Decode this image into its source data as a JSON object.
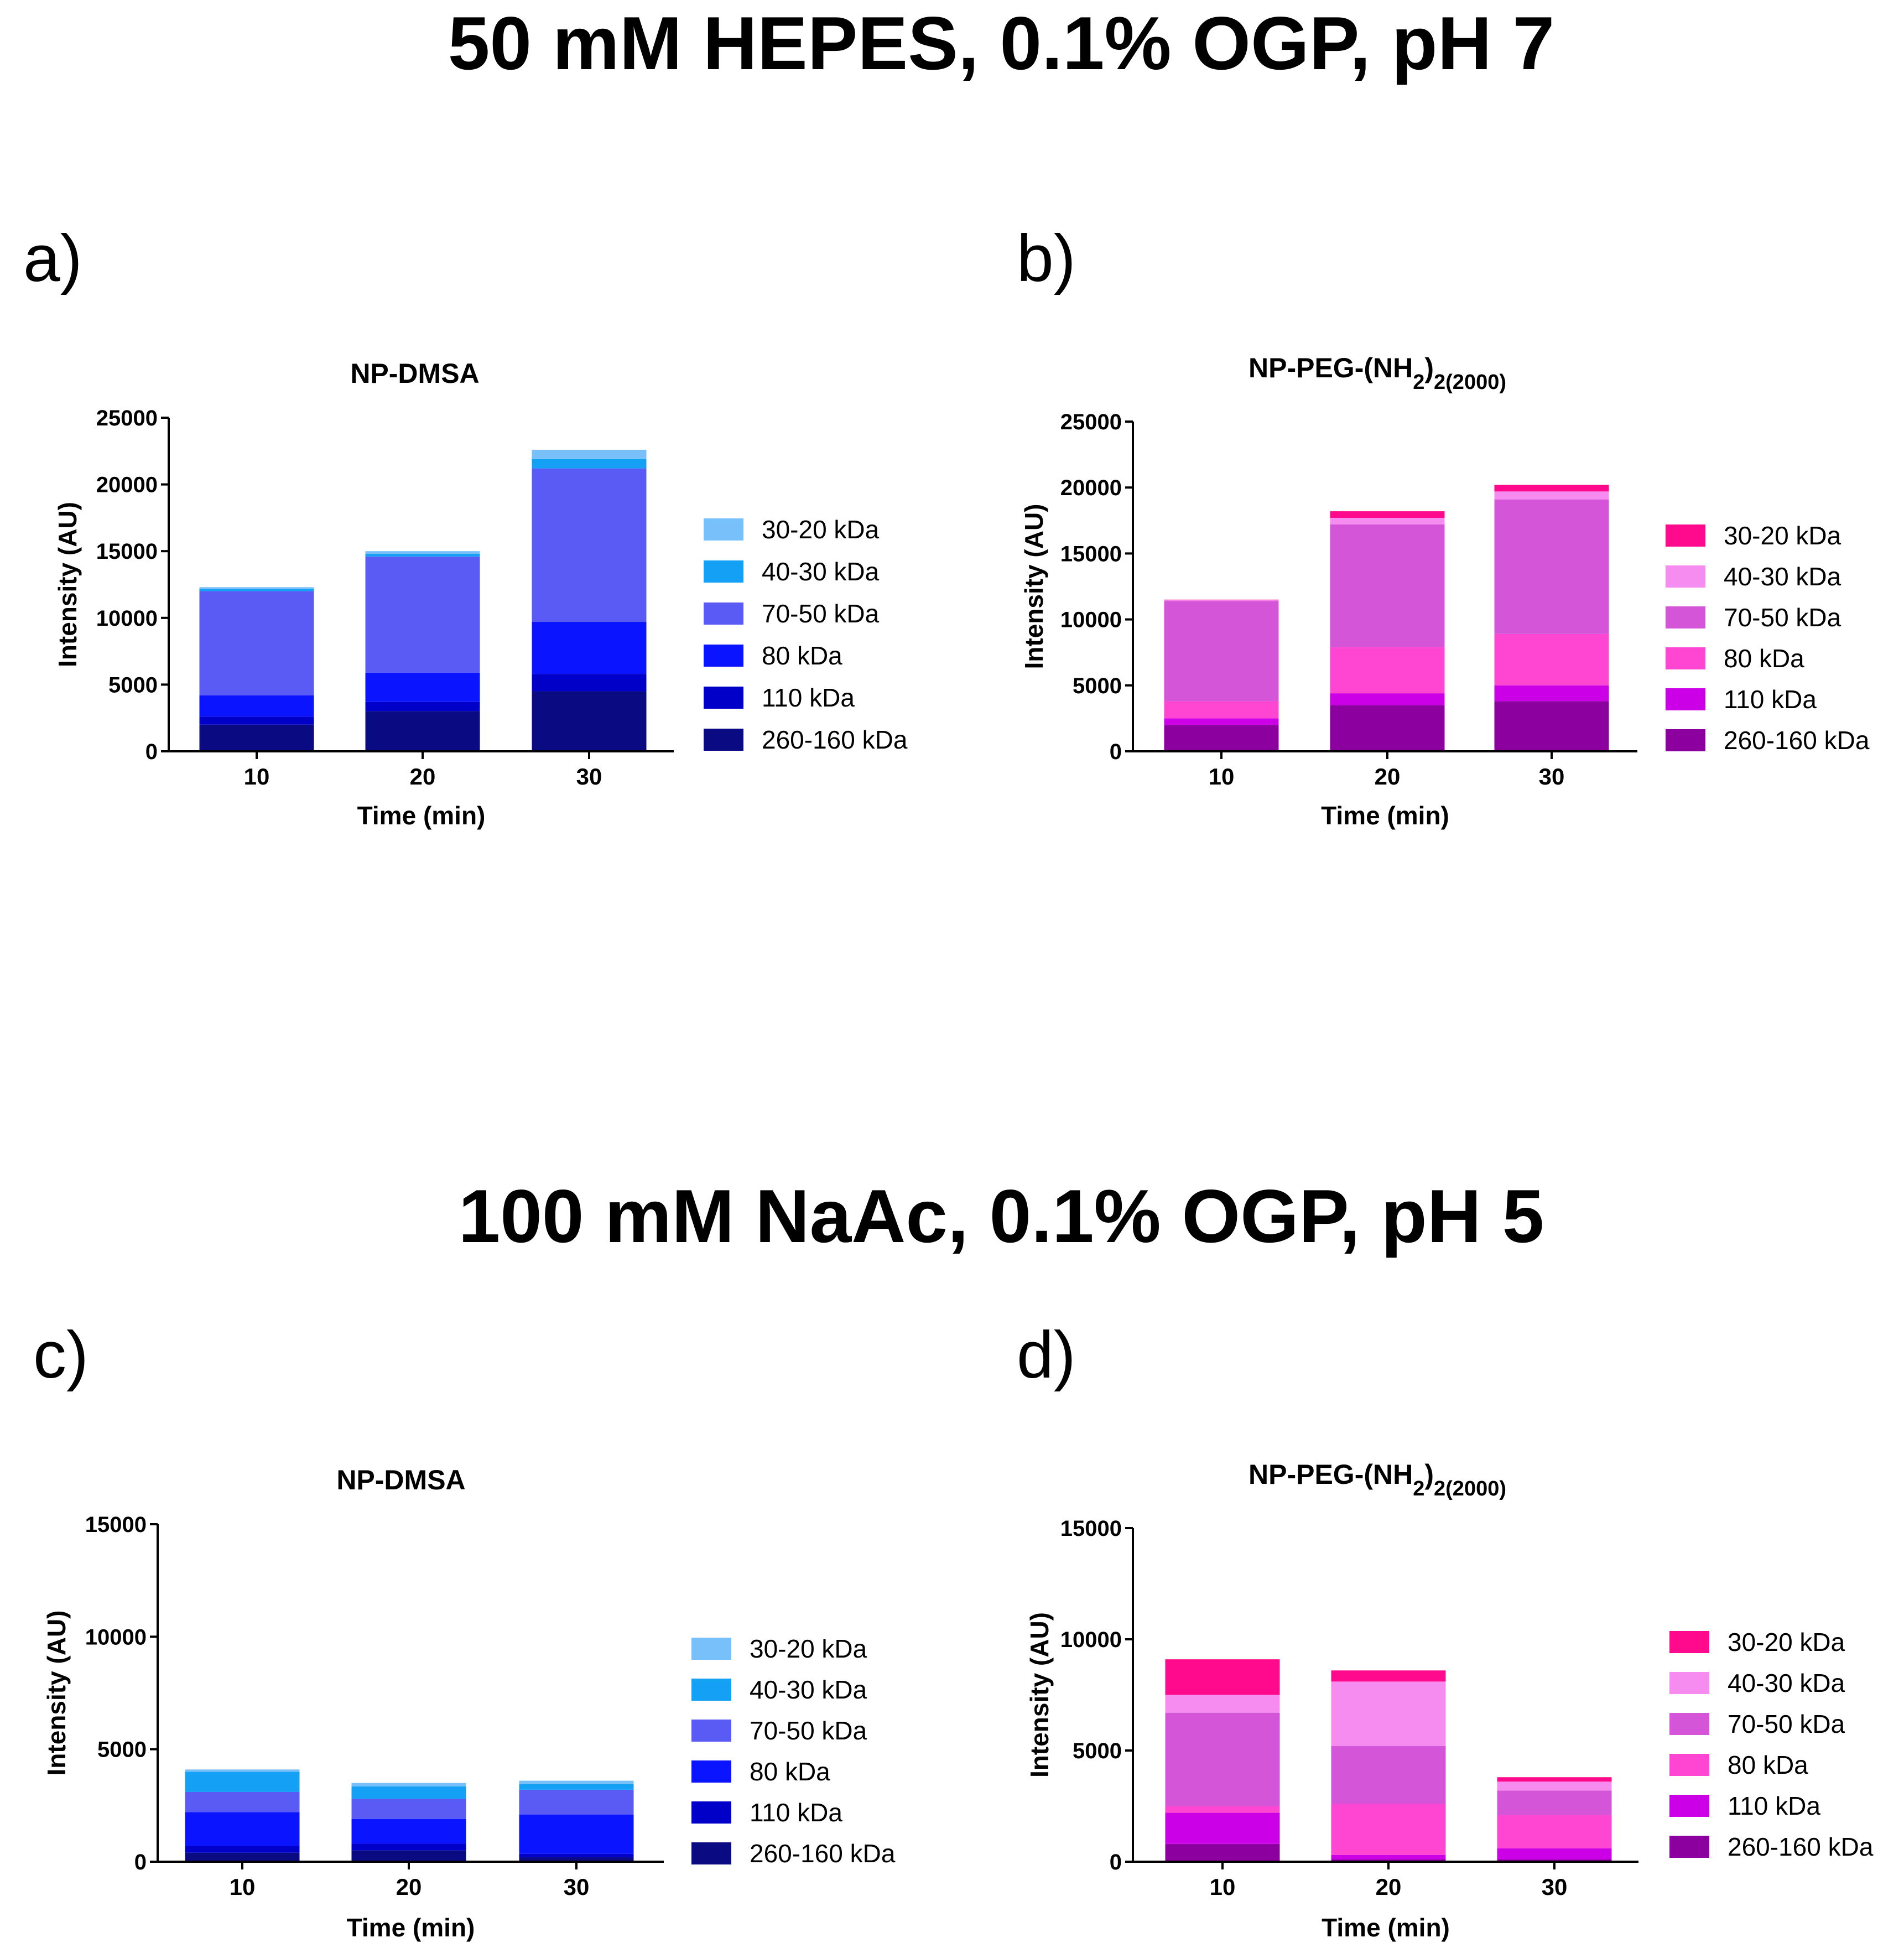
{
  "figure": {
    "section_top_title": "50 mM HEPES, 0.1% OGP, pH 7",
    "section_bottom_title": "100 mM NaAc, 0.1% OGP, pH 5"
  },
  "colors": {
    "dmsa": [
      "#0a0a82",
      "#0000c8",
      "#0a14ff",
      "#5a5af5",
      "#14a0f5",
      "#78c0fa"
    ],
    "peg": [
      "#8c00a0",
      "#cc00e6",
      "#ff46d2",
      "#d455d8",
      "#f68cf0",
      "#ff0a8c"
    ]
  },
  "chart_data": [
    {
      "panel": "a)",
      "type": "bar",
      "stacked": true,
      "title": "NP-DMSA",
      "title_sub": "",
      "xlabel": "Time (min)",
      "ylabel": "Intensity (AU)",
      "ylim": [
        0,
        25000
      ],
      "yticks": [
        0,
        5000,
        10000,
        15000,
        20000,
        25000
      ],
      "categories": [
        "10",
        "20",
        "30"
      ],
      "palette": "dmsa",
      "series": [
        {
          "name": "260-160 kDa",
          "values": [
            2000,
            3000,
            4500
          ]
        },
        {
          "name": "110 kDa",
          "values": [
            600,
            700,
            1300
          ]
        },
        {
          "name": "80 kDa",
          "values": [
            1600,
            2200,
            3900
          ]
        },
        {
          "name": "70-50 kDa",
          "values": [
            7800,
            8700,
            11500
          ]
        },
        {
          "name": "40-30 kDa",
          "values": [
            150,
            200,
            700
          ]
        },
        {
          "name": "30-20 kDa",
          "values": [
            150,
            200,
            700
          ]
        }
      ],
      "legend_order": [
        "30-20 kDa",
        "40-30 kDa",
        "70-50 kDa",
        "80 kDa",
        "110 kDa",
        "260-160 kDa"
      ]
    },
    {
      "panel": "b)",
      "type": "bar",
      "stacked": true,
      "title": "NP-PEG-(NH",
      "title_sub": "2",
      "title_tail": ")",
      "title_sub2": "2(2000)",
      "xlabel": "Time (min)",
      "ylabel": "Intensity (AU)",
      "ylim": [
        0,
        25000
      ],
      "yticks": [
        0,
        5000,
        10000,
        15000,
        20000,
        25000
      ],
      "categories": [
        "10",
        "20",
        "30"
      ],
      "palette": "peg",
      "series": [
        {
          "name": "260-160 kDa",
          "values": [
            2000,
            3500,
            3800
          ]
        },
        {
          "name": "110 kDa",
          "values": [
            500,
            900,
            1200
          ]
        },
        {
          "name": "80 kDa",
          "values": [
            1300,
            3500,
            3900
          ]
        },
        {
          "name": "70-50 kDa",
          "values": [
            7600,
            9300,
            10200
          ]
        },
        {
          "name": "40-30 kDa",
          "values": [
            50,
            500,
            600
          ]
        },
        {
          "name": "30-20 kDa",
          "values": [
            50,
            500,
            500
          ]
        }
      ],
      "legend_order": [
        "30-20 kDa",
        "40-30 kDa",
        "70-50 kDa",
        "80 kDa",
        "110 kDa",
        "260-160 kDa"
      ]
    },
    {
      "panel": "c)",
      "type": "bar",
      "stacked": true,
      "title": "NP-DMSA",
      "title_sub": "",
      "xlabel": "Time (min)",
      "ylabel": "Intensity (AU)",
      "ylim": [
        0,
        15000
      ],
      "yticks": [
        0,
        5000,
        10000,
        15000
      ],
      "categories": [
        "10",
        "20",
        "30"
      ],
      "palette": "dmsa",
      "series": [
        {
          "name": "260-160 kDa",
          "values": [
            400,
            500,
            200
          ]
        },
        {
          "name": "110 kDa",
          "values": [
            300,
            300,
            150
          ]
        },
        {
          "name": "80 kDa",
          "values": [
            1500,
            1100,
            1750
          ]
        },
        {
          "name": "70-50 kDa",
          "values": [
            900,
            900,
            1100
          ]
        },
        {
          "name": "40-30 kDa",
          "values": [
            900,
            550,
            250
          ]
        },
        {
          "name": "30-20 kDa",
          "values": [
            100,
            150,
            150
          ]
        }
      ],
      "legend_order": [
        "30-20 kDa",
        "40-30 kDa",
        "70-50 kDa",
        "80 kDa",
        "110 kDa",
        "260-160 kDa"
      ]
    },
    {
      "panel": "d)",
      "type": "bar",
      "stacked": true,
      "title": "NP-PEG-(NH",
      "title_sub": "2",
      "title_tail": ")",
      "title_sub2": "2(2000)",
      "xlabel": "Time (min)",
      "ylabel": "Intensity (AU)",
      "ylim": [
        0,
        15000
      ],
      "yticks": [
        0,
        5000,
        10000,
        15000
      ],
      "categories": [
        "10",
        "20",
        "30"
      ],
      "palette": "peg",
      "series": [
        {
          "name": "260-160 kDa",
          "values": [
            800,
            100,
            100
          ]
        },
        {
          "name": "110 kDa",
          "values": [
            1400,
            200,
            500
          ]
        },
        {
          "name": "80 kDa",
          "values": [
            300,
            2300,
            1500
          ]
        },
        {
          "name": "70-50 kDa",
          "values": [
            4200,
            2600,
            1100
          ]
        },
        {
          "name": "40-30 kDa",
          "values": [
            800,
            2900,
            400
          ]
        },
        {
          "name": "30-20 kDa",
          "values": [
            1600,
            500,
            200
          ]
        }
      ],
      "legend_order": [
        "30-20 kDa",
        "40-30 kDa",
        "70-50 kDa",
        "80 kDa",
        "110 kDa",
        "260-160 kDa"
      ]
    }
  ]
}
